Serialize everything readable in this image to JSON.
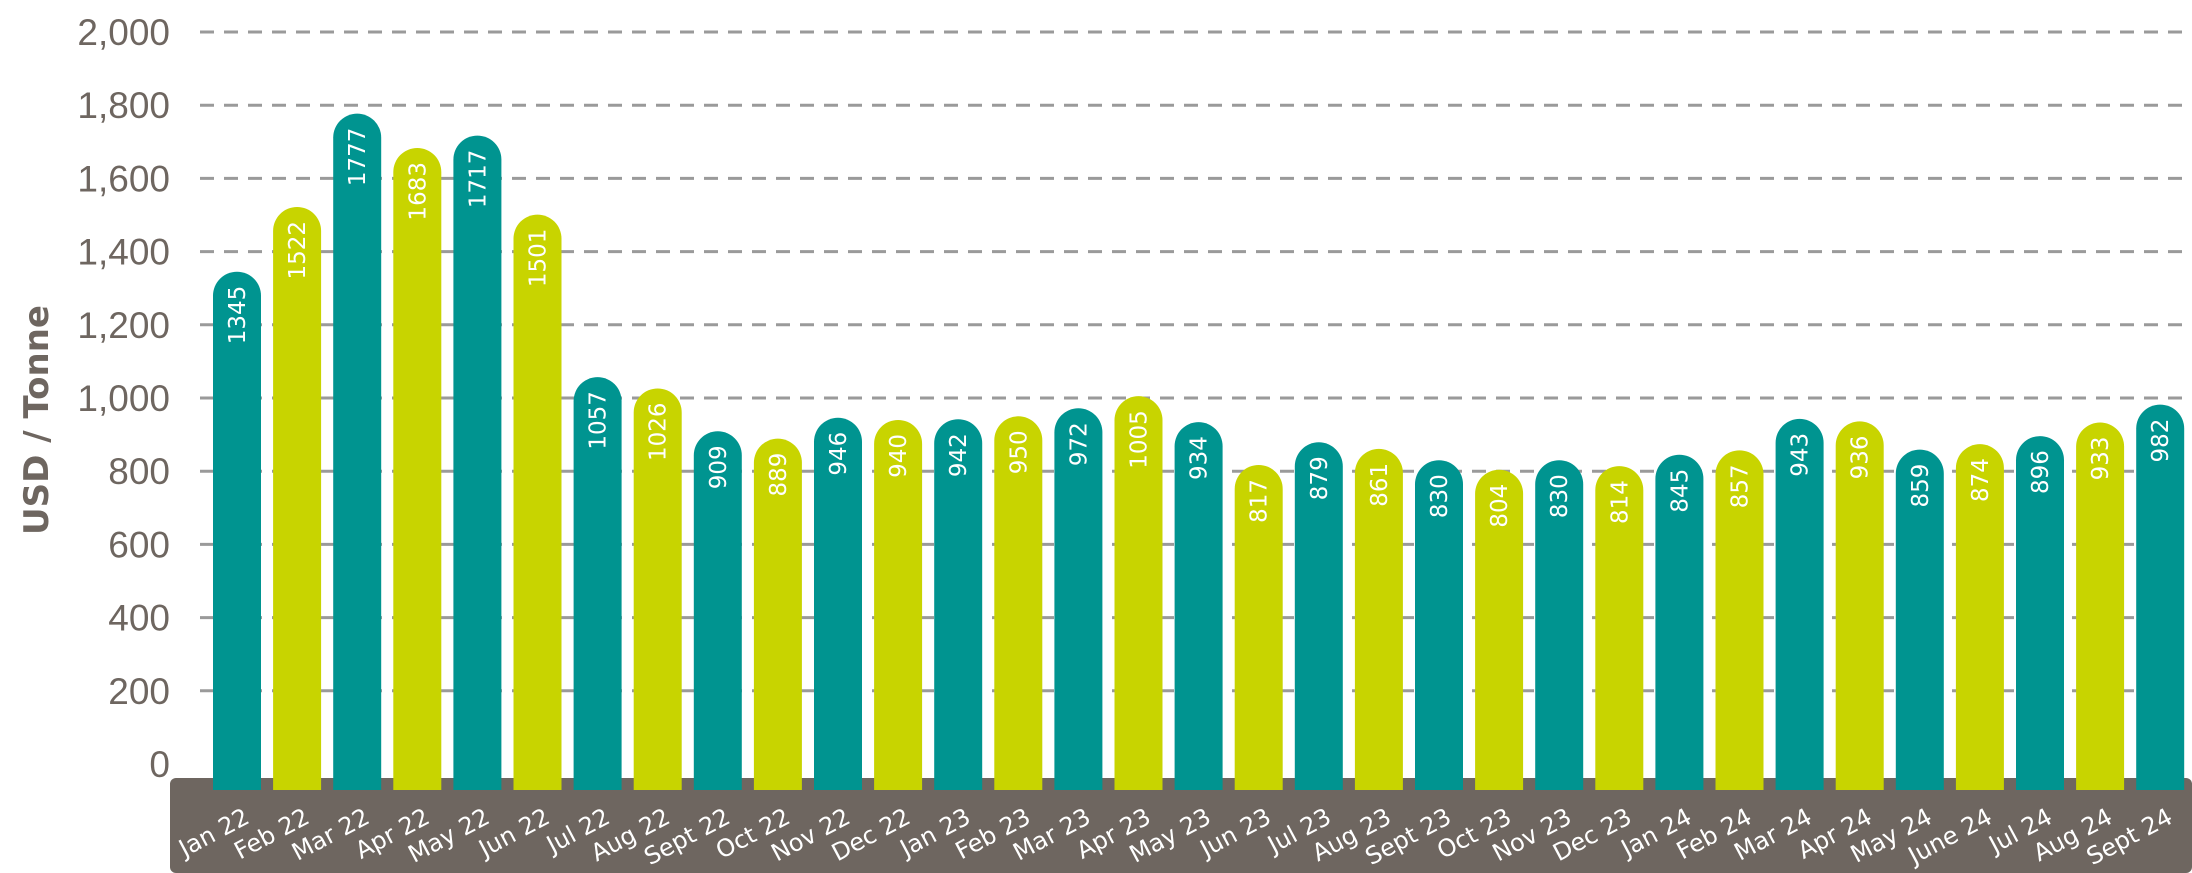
{
  "chart_data": {
    "type": "bar",
    "ylabel": "USD / Tonne",
    "ylim": [
      0,
      2000
    ],
    "yticks": [
      "0",
      "200",
      "400",
      "600",
      "800",
      "1,000",
      "1,200",
      "1,400",
      "1,600",
      "1,800",
      "2,000"
    ],
    "grid": true,
    "colors": {
      "teal": "#009490",
      "lime": "#c8d400",
      "axis_band": "#6e6660",
      "text": "#6e6660"
    },
    "categories": [
      "Jan 22",
      "Feb 22",
      "Mar 22",
      "Apr 22",
      "May 22",
      "Jun 22",
      "Jul 22",
      "Aug 22",
      "Sept 22",
      "Oct 22",
      "Nov 22",
      "Dec 22",
      "Jan 23",
      "Feb 23",
      "Mar 23",
      "Apr 23",
      "May 23",
      "Jun 23",
      "Jul 23",
      "Aug 23",
      "Sept 23",
      "Oct 23",
      "Nov 23",
      "Dec 23",
      "Jan 24",
      "Feb 24",
      "Mar 24",
      "Apr 24",
      "May 24",
      "June 24",
      "Jul 24",
      "Aug 24",
      "Sept 24"
    ],
    "values": [
      1345,
      1522,
      1777,
      1683,
      1717,
      1501,
      1057,
      1026,
      909,
      889,
      946,
      940,
      942,
      950,
      972,
      1005,
      934,
      817,
      879,
      861,
      830,
      804,
      830,
      814,
      845,
      857,
      943,
      936,
      859,
      874,
      896,
      933,
      982
    ],
    "bar_colors": [
      "teal",
      "lime",
      "teal",
      "lime",
      "teal",
      "lime",
      "teal",
      "lime",
      "teal",
      "lime",
      "teal",
      "lime",
      "teal",
      "lime",
      "teal",
      "lime",
      "teal",
      "lime",
      "teal",
      "lime",
      "teal",
      "lime",
      "teal",
      "lime",
      "teal",
      "lime",
      "teal",
      "lime",
      "teal",
      "lime",
      "teal",
      "lime",
      "teal"
    ]
  }
}
